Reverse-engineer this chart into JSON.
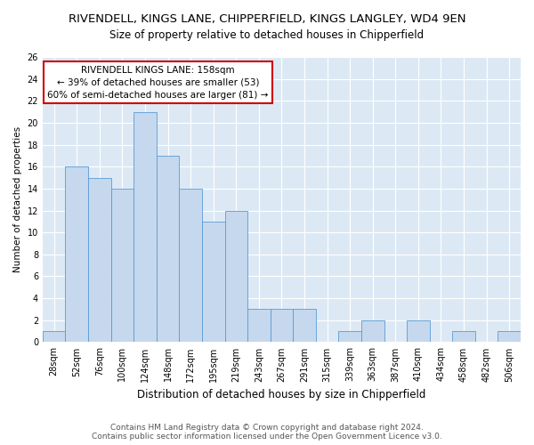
{
  "title": "RIVENDELL, KINGS LANE, CHIPPERFIELD, KINGS LANGLEY, WD4 9EN",
  "subtitle": "Size of property relative to detached houses in Chipperfield",
  "xlabel": "Distribution of detached houses by size in Chipperfield",
  "ylabel": "Number of detached properties",
  "categories": [
    "28sqm",
    "52sqm",
    "76sqm",
    "100sqm",
    "124sqm",
    "148sqm",
    "172sqm",
    "195sqm",
    "219sqm",
    "243sqm",
    "267sqm",
    "291sqm",
    "315sqm",
    "339sqm",
    "363sqm",
    "387sqm",
    "410sqm",
    "434sqm",
    "458sqm",
    "482sqm",
    "506sqm"
  ],
  "values": [
    1,
    16,
    15,
    14,
    21,
    17,
    14,
    11,
    12,
    3,
    3,
    3,
    0,
    1,
    2,
    0,
    2,
    0,
    1,
    0,
    1
  ],
  "bar_color": "#c5d8ed",
  "bar_edge_color": "#5b9bd5",
  "ylim": [
    0,
    26
  ],
  "yticks": [
    0,
    2,
    4,
    6,
    8,
    10,
    12,
    14,
    16,
    18,
    20,
    22,
    24,
    26
  ],
  "annotation_line1": "RIVENDELL KINGS LANE: 158sqm",
  "annotation_line2": "← 39% of detached houses are smaller (53)",
  "annotation_line3": "60% of semi-detached houses are larger (81) →",
  "annotation_box_color": "#ffffff",
  "annotation_box_edge": "#cc0000",
  "footer": "Contains HM Land Registry data © Crown copyright and database right 2024.\nContains public sector information licensed under the Open Government Licence v3.0.",
  "fig_background_color": "#ffffff",
  "plot_background": "#dce9f5",
  "grid_color": "#ffffff",
  "title_fontsize": 9.5,
  "subtitle_fontsize": 8.5,
  "xlabel_fontsize": 8.5,
  "ylabel_fontsize": 7.5,
  "tick_fontsize": 7,
  "annotation_fontsize": 7.5,
  "footer_fontsize": 6.5
}
